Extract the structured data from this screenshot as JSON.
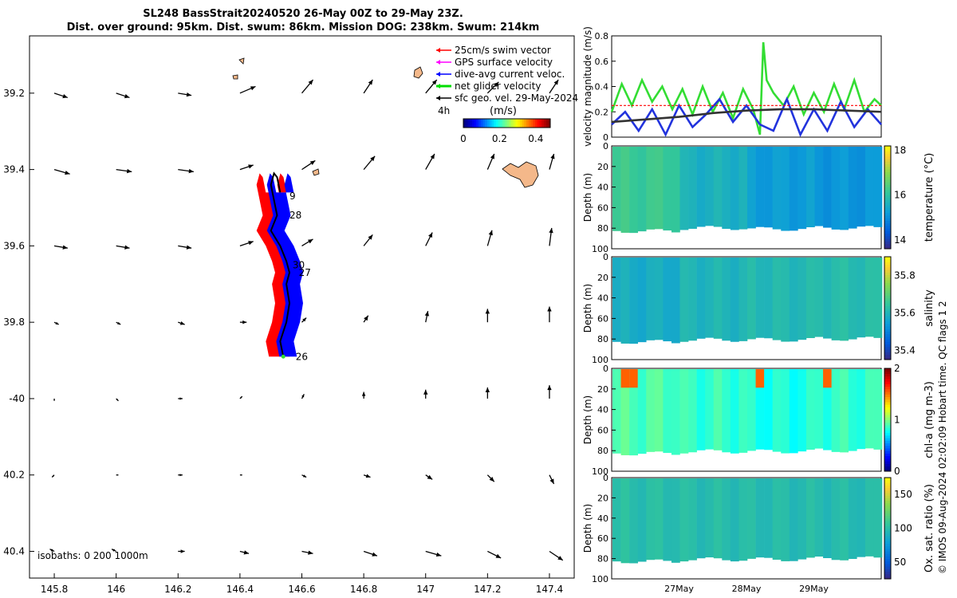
{
  "title": {
    "line1": "SL248 BassStrait20240520 26-May 00Z to 29-May 23Z.",
    "line2": "Dist. over ground: 95km. Dist. swum: 86km. Mission DOG: 238km. Swum: 214km"
  },
  "side_label": "© IMOS 09-Aug-2024 02:02:09 Hobart time. QC flags 1  2",
  "chart_data": [
    {
      "type": "map",
      "xlim": [
        145.72,
        147.48
      ],
      "ylim": [
        -40.47,
        -39.05
      ],
      "x_ticks": [
        {
          "v": 145.8,
          "label": "145.8"
        },
        {
          "v": 146,
          "label": "146"
        },
        {
          "v": 146.2,
          "label": "146.2"
        },
        {
          "v": 146.4,
          "label": "146.4"
        },
        {
          "v": 146.6,
          "label": "146.6"
        },
        {
          "v": 146.8,
          "label": "146.8"
        },
        {
          "v": 147,
          "label": "147"
        },
        {
          "v": 147.2,
          "label": "147.2"
        },
        {
          "v": 147.4,
          "label": "147.4"
        }
      ],
      "y_ticks": [
        {
          "v": -39.2,
          "label": "39.2"
        },
        {
          "v": -39.4,
          "label": "39.4"
        },
        {
          "v": -39.6,
          "label": "39.6"
        },
        {
          "v": -39.8,
          "label": "39.8"
        },
        {
          "v": -40.0,
          "label": "-40"
        },
        {
          "v": -40.2,
          "label": "40.2"
        },
        {
          "v": -40.4,
          "label": "40.4"
        }
      ],
      "legend": [
        {
          "label": "25cm/s swim vector",
          "color": "#ff0000"
        },
        {
          "label": "GPS surface velocity",
          "color": "#ff00ff"
        },
        {
          "label": "dive-avg current veloc.",
          "color": "#0000ff"
        },
        {
          "label": "net glider velocity",
          "color": "#00dd00"
        },
        {
          "label": "sfc geo. vel. 29-May-2024",
          "color": "#000000"
        }
      ],
      "scale_label": "4h",
      "colorbar": {
        "label": "(m/s)",
        "min": 0,
        "max": 0.48,
        "ticks": [
          {
            "v": 0,
            "label": "0"
          },
          {
            "v": 0.2,
            "label": "0.2"
          },
          {
            "v": 0.4,
            "label": "0.4"
          }
        ]
      },
      "isobaths_label": "isobaths: 0    200   1000m",
      "geo_vectors": {
        "lons": [
          145.8,
          146.0,
          146.2,
          146.4,
          146.6,
          146.8,
          147.0,
          147.2,
          147.4
        ],
        "lats": [
          -39.2,
          -39.4,
          -39.6,
          -39.8,
          -40.0,
          -40.2,
          -40.4
        ],
        "u": [
          [
            0.06,
            0.06,
            0.06,
            0.07,
            0.05,
            0.04,
            0.05,
            0.05,
            0.04
          ],
          [
            0.07,
            0.07,
            0.07,
            0.06,
            0.06,
            0.05,
            0.04,
            0.03,
            0.02
          ],
          [
            0.06,
            0.06,
            0.06,
            0.06,
            0.05,
            0.04,
            0.03,
            0.02,
            0.01
          ],
          [
            0.02,
            0.02,
            0.03,
            0.03,
            0.02,
            0.02,
            0.01,
            0.0,
            0.0
          ],
          [
            0.0,
            0.01,
            0.02,
            0.01,
            0.01,
            0.0,
            0.0,
            0.0,
            0.0
          ],
          [
            -0.01,
            0.01,
            0.02,
            0.01,
            0.02,
            0.03,
            0.03,
            0.03,
            0.02
          ],
          [
            -0.02,
            -0.02,
            0.03,
            0.04,
            0.05,
            0.06,
            0.07,
            0.06,
            0.06
          ]
        ],
        "v": [
          [
            -0.02,
            -0.02,
            -0.01,
            0.03,
            0.06,
            0.06,
            0.06,
            0.05,
            0.06
          ],
          [
            -0.02,
            -0.01,
            -0.01,
            0.02,
            0.04,
            0.06,
            0.07,
            0.07,
            0.07
          ],
          [
            -0.01,
            -0.01,
            -0.01,
            0.02,
            0.03,
            0.05,
            0.06,
            0.07,
            0.08
          ],
          [
            -0.01,
            -0.01,
            -0.01,
            0.0,
            0.02,
            0.03,
            0.05,
            0.06,
            0.07
          ],
          [
            -0.01,
            -0.01,
            0.0,
            0.01,
            0.02,
            0.03,
            0.04,
            0.05,
            0.06
          ],
          [
            -0.01,
            0.0,
            0.0,
            0.0,
            -0.01,
            -0.01,
            -0.02,
            -0.03,
            -0.04
          ],
          [
            0.01,
            0.01,
            0.0,
            -0.01,
            -0.01,
            -0.02,
            -0.02,
            -0.03,
            -0.04
          ]
        ]
      },
      "track": [
        {
          "lon": 146.54,
          "lat": -39.89
        },
        {
          "lon": 146.53,
          "lat": -39.85
        },
        {
          "lon": 146.55,
          "lat": -39.8
        },
        {
          "lon": 146.56,
          "lat": -39.75
        },
        {
          "lon": 146.55,
          "lat": -39.7
        },
        {
          "lon": 146.56,
          "lat": -39.67
        },
        {
          "lon": 146.55,
          "lat": -39.64
        },
        {
          "lon": 146.53,
          "lat": -39.6
        },
        {
          "lon": 146.5,
          "lat": -39.56
        },
        {
          "lon": 146.52,
          "lat": -39.52
        },
        {
          "lon": 146.51,
          "lat": -39.48
        },
        {
          "lon": 146.5,
          "lat": -39.44
        },
        {
          "lon": 146.51,
          "lat": -39.41
        },
        {
          "lon": 146.52,
          "lat": -39.42
        },
        {
          "lon": 146.53,
          "lat": -39.46
        }
      ],
      "day_labels": [
        {
          "label": "26",
          "lon": 146.58,
          "lat": -39.89
        },
        {
          "label": "27",
          "lon": 146.59,
          "lat": -39.67
        },
        {
          "label": "30",
          "lon": 146.57,
          "lat": -39.65
        },
        {
          "label": "28",
          "lon": 146.56,
          "lat": -39.52
        },
        {
          "label": "9",
          "lon": 146.56,
          "lat": -39.47
        }
      ]
    },
    {
      "type": "line",
      "ylabel": "velocity magnitude (m/s)",
      "ylim": [
        0,
        0.8
      ],
      "y_ticks": [
        0,
        0.2,
        0.4,
        0.6,
        0.8
      ],
      "xlim": [
        0,
        4
      ],
      "series": [
        {
          "name": "net glider velocity",
          "color": "#33dd33",
          "x": [
            0,
            0.15,
            0.3,
            0.45,
            0.6,
            0.75,
            0.9,
            1.05,
            1.2,
            1.35,
            1.5,
            1.65,
            1.8,
            1.95,
            2.1,
            2.2,
            2.25,
            2.3,
            2.4,
            2.55,
            2.7,
            2.85,
            3.0,
            3.15,
            3.3,
            3.45,
            3.6,
            3.75,
            3.9,
            4.0
          ],
          "values": [
            0.2,
            0.42,
            0.25,
            0.45,
            0.28,
            0.4,
            0.22,
            0.38,
            0.18,
            0.4,
            0.2,
            0.35,
            0.15,
            0.38,
            0.22,
            0.02,
            0.75,
            0.45,
            0.35,
            0.25,
            0.4,
            0.18,
            0.35,
            0.2,
            0.42,
            0.22,
            0.45,
            0.2,
            0.3,
            0.25
          ]
        },
        {
          "name": "dive-avg current veloc.",
          "color": "#2233dd",
          "x": [
            0,
            0.2,
            0.4,
            0.6,
            0.8,
            1.0,
            1.2,
            1.4,
            1.6,
            1.8,
            2.0,
            2.2,
            2.4,
            2.6,
            2.8,
            3.0,
            3.2,
            3.4,
            3.6,
            3.8,
            4.0
          ],
          "values": [
            0.1,
            0.2,
            0.05,
            0.22,
            0.02,
            0.25,
            0.08,
            0.18,
            0.3,
            0.12,
            0.25,
            0.1,
            0.05,
            0.3,
            0.02,
            0.22,
            0.05,
            0.28,
            0.08,
            0.22,
            0.1
          ]
        },
        {
          "name": "sfc geo. vel.",
          "color": "#333333",
          "x": [
            0,
            0.5,
            1.0,
            1.5,
            2.0,
            2.5,
            3.0,
            3.5,
            4.0
          ],
          "values": [
            0.12,
            0.14,
            0.16,
            0.19,
            0.21,
            0.22,
            0.22,
            0.21,
            0.2
          ]
        },
        {
          "name": "swim speed",
          "color": "#ff0000",
          "x": [
            0,
            4
          ],
          "values": [
            0.25,
            0.25
          ]
        }
      ]
    },
    {
      "type": "heatmap",
      "ylabel": "Depth (m)",
      "colorbar_label": "temperature (°C)",
      "clim": [
        13.6,
        18.2
      ],
      "colorbar_ticks": [
        14,
        16,
        18
      ],
      "ylim": [
        100,
        0
      ],
      "y_ticks": [
        0,
        20,
        40,
        60,
        80,
        100
      ],
      "values_by_day": [
        16.2,
        15.6,
        15.2,
        15.1
      ],
      "max_depth": [
        82,
        79,
        80,
        79
      ]
    },
    {
      "type": "heatmap",
      "ylabel": "Depth (m)",
      "colorbar_label": "salinity",
      "clim": [
        35.35,
        35.9
      ],
      "colorbar_ticks": [
        35.4,
        35.6,
        35.8
      ],
      "ylim": [
        100,
        0
      ],
      "y_ticks": [
        0,
        20,
        40,
        60,
        80,
        100
      ],
      "values_by_day": [
        35.58,
        35.6,
        35.61,
        35.62
      ],
      "max_depth": [
        82,
        80,
        80,
        79
      ]
    },
    {
      "type": "heatmap",
      "ylabel": "Depth (m)",
      "colorbar_label": "chl-a (mg m-3)",
      "clim": [
        0,
        2
      ],
      "colorbar_ticks": [
        0,
        1,
        2
      ],
      "ylim": [
        100,
        0
      ],
      "y_ticks": [
        0,
        20,
        40,
        60,
        80,
        100
      ],
      "values_by_day": [
        0.9,
        0.85,
        0.8,
        0.85
      ],
      "max_depth": [
        82,
        80,
        80,
        79
      ]
    },
    {
      "type": "heatmap",
      "ylabel": "Depth (m)",
      "colorbar_label": "Ox. sat. ratio (%)",
      "clim": [
        25,
        175
      ],
      "colorbar_ticks": [
        50,
        100,
        150
      ],
      "ylim": [
        100,
        0
      ],
      "y_ticks": [
        0,
        20,
        40,
        60,
        80,
        100
      ],
      "values_by_day": [
        100,
        99,
        98,
        98
      ],
      "max_depth": [
        82,
        80,
        80,
        79
      ]
    }
  ],
  "time_axis": {
    "ticks": [
      {
        "v": 1,
        "label": "27May"
      },
      {
        "v": 2,
        "label": "28May"
      },
      {
        "v": 3,
        "label": "29May"
      }
    ]
  }
}
